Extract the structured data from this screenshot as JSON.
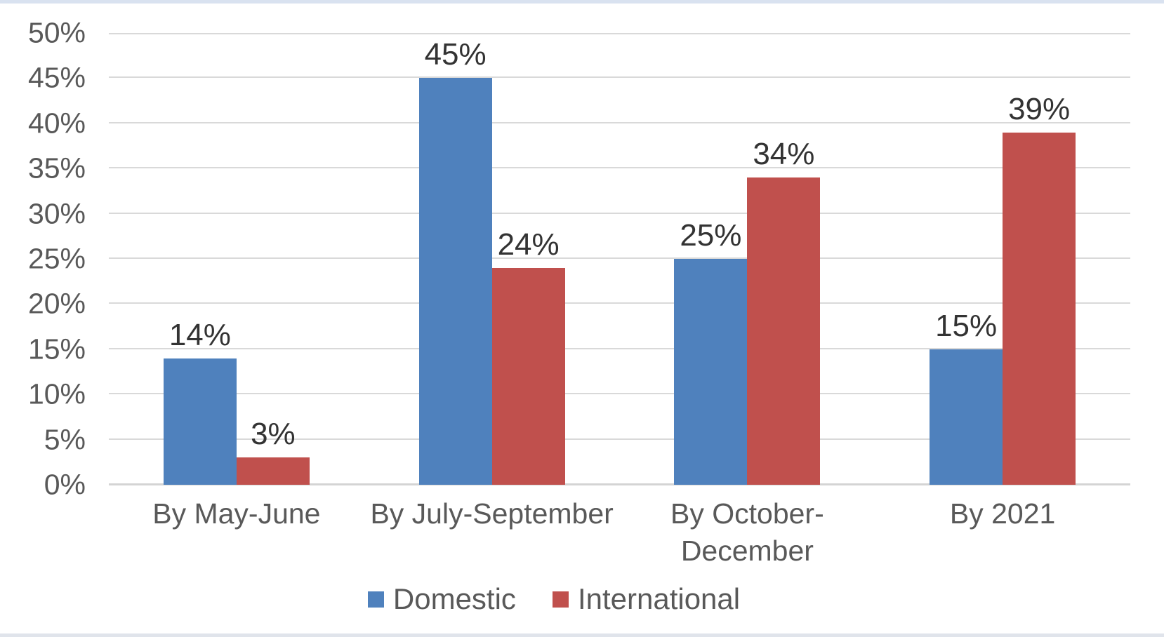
{
  "page": {
    "top_strip_color": "#d9e2f0",
    "bottom_strip_color": "#e0e4eb"
  },
  "chart_data": {
    "type": "bar",
    "title": "",
    "categories": [
      "By May-June",
      "By July-September",
      "By October-December",
      "By 2021"
    ],
    "series": [
      {
        "name": "Domestic",
        "color": "#4F81BD",
        "values": [
          14,
          45,
          25,
          15
        ],
        "labels": [
          "14%",
          "45%",
          "25%",
          "15%"
        ]
      },
      {
        "name": "International",
        "color": "#C0504D",
        "values": [
          3,
          24,
          34,
          39
        ],
        "labels": [
          "3%",
          "24%",
          "34%",
          "39%"
        ]
      }
    ],
    "y_axis": {
      "min": 0,
      "max": 50,
      "step": 5,
      "tick_labels": [
        "0%",
        "5%",
        "10%",
        "15%",
        "20%",
        "25%",
        "30%",
        "35%",
        "40%",
        "45%",
        "50%"
      ]
    },
    "grid": true,
    "gridline_color": "#D9D9D9",
    "axis_label_color": "#595959",
    "data_label_color": "#333333",
    "legend_position": "bottom",
    "ylim": [
      0,
      50
    ]
  }
}
